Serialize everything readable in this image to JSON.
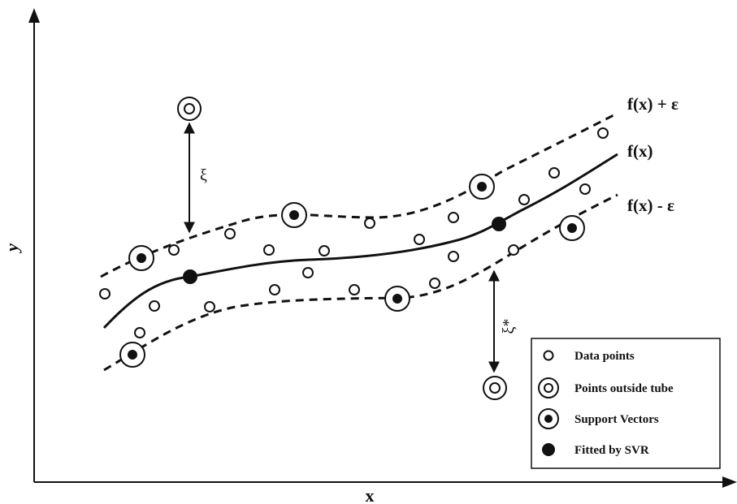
{
  "axes": {
    "x_label": "x",
    "y_label": "y"
  },
  "curves": {
    "upper_label": "f(x) + ε",
    "center_label": "f(x)",
    "lower_label": "f(x) - ε"
  },
  "slack": {
    "upper_symbol": "ξ",
    "lower_symbol": "ξ*"
  },
  "legend": {
    "position": "bottom-right",
    "items": [
      {
        "marker": "data-point",
        "label": "Data points"
      },
      {
        "marker": "outside-point",
        "label": "Points outside tube"
      },
      {
        "marker": "support-vector",
        "label": "Support Vectors"
      },
      {
        "marker": "fitted-point",
        "label": "Fitted by SVR"
      }
    ]
  },
  "colors": {
    "ink": "#111111",
    "background": "#ffffff"
  }
}
